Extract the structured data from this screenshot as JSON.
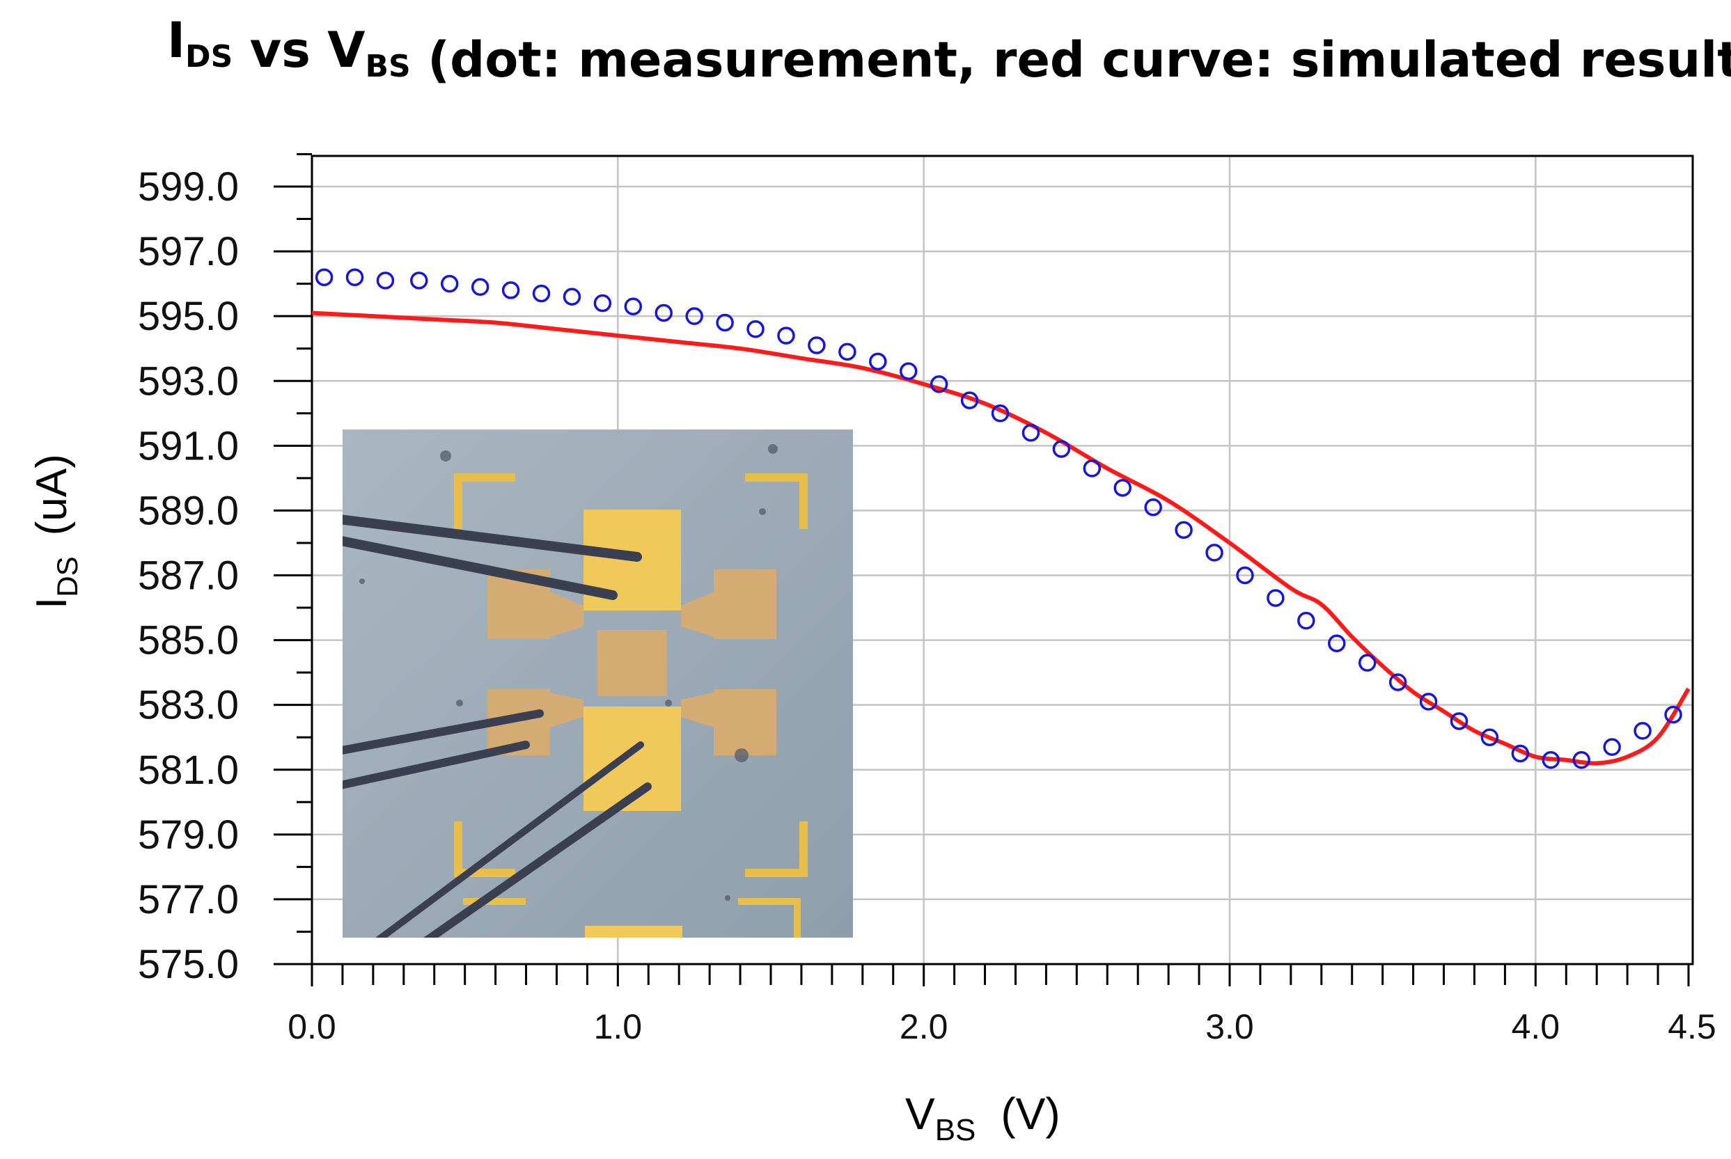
{
  "chart_data": {
    "type": "scatter",
    "title": {
      "parts": [
        {
          "text": "I",
          "sub": "DS"
        },
        {
          "text": " vs V",
          "sub": "BS"
        },
        {
          "text": " (dot: measurement, red curve: simulated result)",
          "sub": ""
        }
      ]
    },
    "xlabel": {
      "main": "V",
      "sub": "BS",
      "unit": "(V)"
    },
    "ylabel": {
      "main": "I",
      "sub": "DS",
      "unit": "(uA)"
    },
    "xlim": [
      0.0,
      4.5
    ],
    "ylim": [
      575.0,
      600.0
    ],
    "x_major_ticks": [
      0.0,
      1.0,
      2.0,
      3.0,
      4.0,
      4.5
    ],
    "x_tick_labels": [
      "0.0",
      "1.0",
      "2.0",
      "3.0",
      "4.0",
      "4.5"
    ],
    "y_major_ticks": [
      575,
      577,
      579,
      581,
      583,
      585,
      587,
      589,
      591,
      593,
      595,
      597,
      599
    ],
    "y_tick_labels": [
      "575.0",
      "577.0",
      "579.0",
      "581.0",
      "583.0",
      "585.0",
      "587.0",
      "589.0",
      "591.0",
      "593.0",
      "595.0",
      "597.0",
      "599.0"
    ],
    "grid": true,
    "series": [
      {
        "name": "measurement",
        "style": "open-circle",
        "color": "#1515e0",
        "x": [
          0.04,
          0.14,
          0.24,
          0.35,
          0.45,
          0.55,
          0.65,
          0.75,
          0.85,
          0.95,
          1.05,
          1.15,
          1.25,
          1.35,
          1.45,
          1.55,
          1.65,
          1.75,
          1.85,
          1.95,
          2.05,
          2.15,
          2.25,
          2.35,
          2.45,
          2.55,
          2.65,
          2.75,
          2.85,
          2.95,
          3.05,
          3.15,
          3.25,
          3.35,
          3.45,
          3.55,
          3.65,
          3.75,
          3.85,
          3.95,
          4.05,
          4.15,
          4.25,
          4.35,
          4.45
        ],
        "y": [
          596.2,
          596.2,
          596.1,
          596.1,
          596.0,
          595.9,
          595.8,
          595.7,
          595.6,
          595.4,
          595.3,
          595.1,
          595.0,
          594.8,
          594.6,
          594.4,
          594.1,
          593.9,
          593.6,
          593.3,
          592.9,
          592.4,
          592.0,
          591.4,
          590.9,
          590.3,
          589.7,
          589.1,
          588.4,
          587.7,
          587.0,
          586.3,
          585.6,
          584.9,
          584.3,
          583.7,
          583.1,
          582.5,
          582.0,
          581.5,
          581.3,
          581.3,
          581.7,
          582.2,
          582.7
        ]
      },
      {
        "name": "simulated result",
        "style": "line",
        "color": "#ff1a1a",
        "x": [
          0.0,
          0.2,
          0.4,
          0.6,
          0.8,
          1.0,
          1.2,
          1.4,
          1.6,
          1.8,
          2.0,
          2.2,
          2.4,
          2.6,
          2.8,
          3.0,
          3.2,
          3.3,
          3.4,
          3.5,
          3.6,
          3.7,
          3.8,
          3.9,
          4.0,
          4.1,
          4.2,
          4.3,
          4.4,
          4.5
        ],
        "y": [
          595.1,
          595.0,
          594.9,
          594.8,
          594.6,
          594.4,
          594.2,
          594.0,
          593.7,
          593.4,
          592.9,
          592.3,
          591.4,
          590.3,
          589.3,
          588.0,
          586.6,
          586.1,
          585.1,
          584.2,
          583.4,
          582.8,
          582.2,
          581.8,
          581.4,
          581.3,
          581.2,
          581.4,
          582.0,
          583.5
        ]
      }
    ],
    "inset": {
      "description_name": "device-micrograph-inset",
      "background": "#9aabb8",
      "pad_color": "#f1c85a",
      "contact_color": "#d1a96f",
      "probe_color": "#3a3f52"
    }
  }
}
